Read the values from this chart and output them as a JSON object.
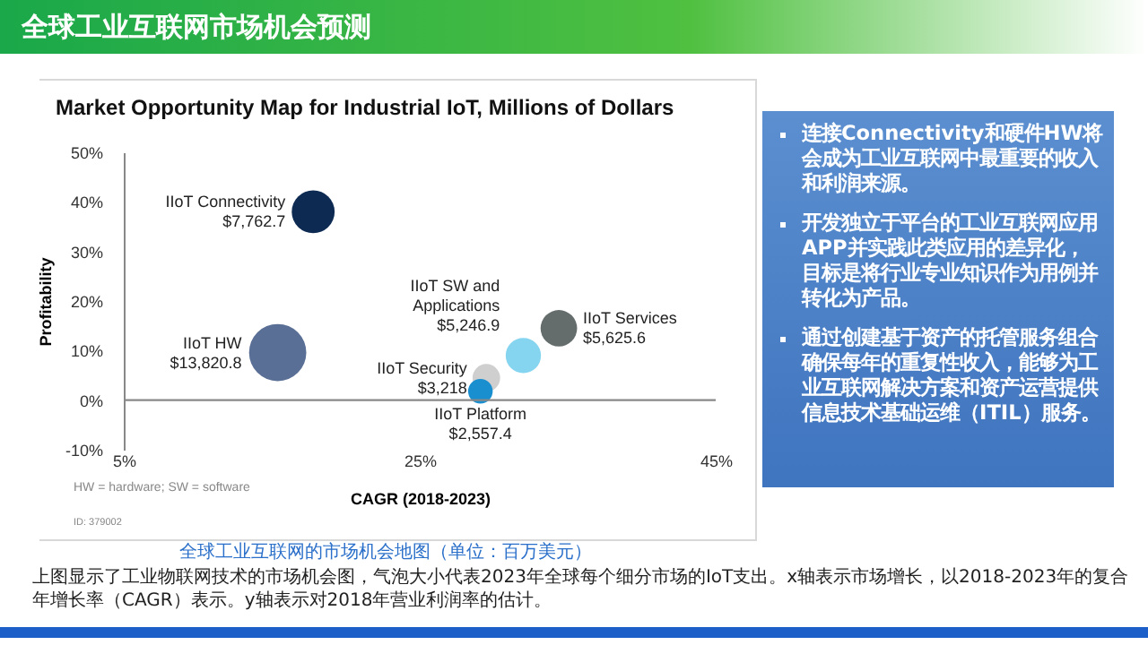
{
  "chart_data": [
    {
      "type": "bubble",
      "title": "Market Opportunity Map for Industrial IoT, Millions of Dollars",
      "xlabel": "CAGR (2018-2023)",
      "ylabel": "Profitability",
      "x": [
        17.8,
        15.4,
        32,
        34.4,
        29.5,
        29.1
      ],
      "values": [
        38,
        9.6,
        9,
        14.5,
        4.5,
        1.8
      ],
      "sizes": [
        0.5617,
        1,
        0.3796,
        0.407,
        0.2328,
        0.185
      ],
      "colors": [
        "#0d2a52",
        "#5a6f96",
        "#85d4f0",
        "#646c6c",
        "#cfcfcf",
        "#1a8fd0"
      ],
      "xlim": [
        5,
        45
      ],
      "ylim": [
        -10,
        50
      ],
      "xticks": [
        {
          "value": 5,
          "label": "5%"
        },
        {
          "value": 25,
          "label": "25%"
        },
        {
          "value": 45,
          "label": "45%"
        }
      ],
      "yticks": [
        {
          "value": -10,
          "label": "-10%"
        },
        {
          "value": 0,
          "label": "0%"
        },
        {
          "value": 10,
          "label": "10%"
        },
        {
          "value": 20,
          "label": "20%"
        },
        {
          "value": 30,
          "label": "30%"
        },
        {
          "value": 40,
          "label": "40%"
        },
        {
          "value": 50,
          "label": "50%"
        }
      ],
      "ref_lines": [
        {
          "axis": "y",
          "value": 0,
          "color": "#888888"
        }
      ],
      "annotations": [
        {
          "text": "IIoT Connectivity\n$7,762.7",
          "x": 17.8,
          "y": 38
        },
        {
          "text": "IIoT HW\n$13,820.8",
          "x": 15.4,
          "y": 9.6
        },
        {
          "text": "IIoT SW and\nApplications\n$5,246.9",
          "x": 32,
          "y": 9
        },
        {
          "text": "IIoT Services\n$5,625.6",
          "x": 34.4,
          "y": 14.5
        },
        {
          "text": "IIoT Security\n$3,218",
          "x": 29.5,
          "y": 4.5
        },
        {
          "text": "IIoT Platform\n$2,557.4",
          "x": 29.1,
          "y": 1.8
        },
        "HW = hardware; SW = software",
        "ID: 379002",
        "全球工业互联网的市场机会地图（单位：百万美元）",
        "上图显示了工业物联网技术的市场机会图，气泡大小代表2023年全球每个细分市场的IoT支出。x轴表示市场增长，以2018-2023年的复合年增长率（CAGR）表示。y轴表示对2018年营业利润率的估计。"
      ]
    },
    {
      "type": "other",
      "title": "全球工业互联网市场机会预测",
      "annotations": [
        "连接Connectivity和硬件HW将会成为工业互联网中最重要的收入和利润来源。",
        "开发独立于平台的工业互联网应用APP并实践此类应用的差异化，目标是将行业专业知识作为用例并转化为产品。",
        "通过创建基于资产的托管服务组合确保每年的重复性收入，能够为工业互联网解决方案和资产运营提供信息技术基础运维（ITIL）服务。"
      ]
    }
  ]
}
